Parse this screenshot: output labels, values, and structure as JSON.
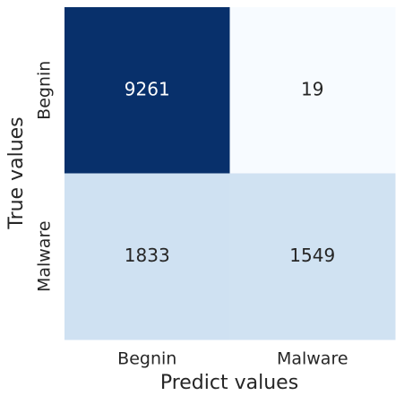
{
  "chart_data": {
    "type": "heatmap",
    "x_categories": [
      "Begnin",
      "Malware"
    ],
    "y_categories": [
      "Begnin",
      "Malware"
    ],
    "values": [
      [
        9261,
        19
      ],
      [
        1833,
        1549
      ]
    ],
    "colors": [
      [
        "#08306b",
        "#f7fbff"
      ],
      [
        "#cfe1f2",
        "#d0e2f2"
      ]
    ],
    "xlabel": "Predict values",
    "ylabel": "True values"
  }
}
